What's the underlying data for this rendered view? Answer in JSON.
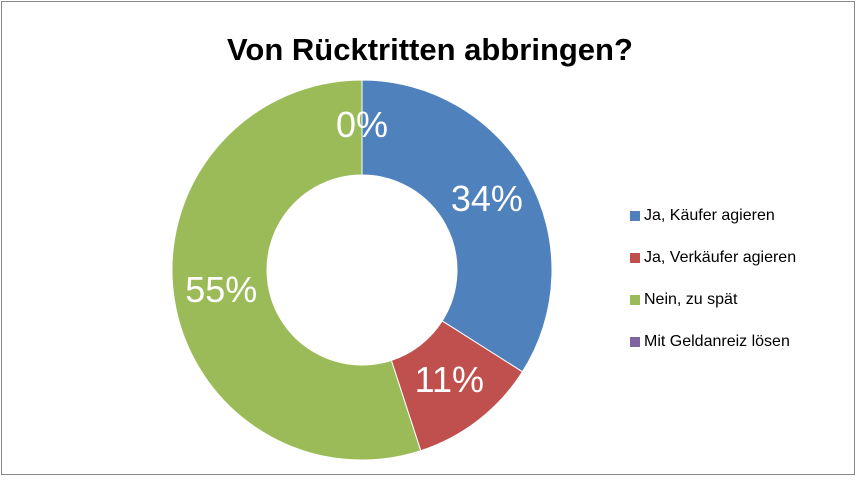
{
  "chart_data": {
    "type": "pie",
    "donut": true,
    "title": "Von Rücktritten abbringen?",
    "categories": [
      "Ja, Käufer agieren",
      "Ja, Verkäufer agieren",
      "Nein, zu spät",
      "Mit Geldanreiz lösen"
    ],
    "values": [
      34,
      11,
      55,
      0
    ],
    "value_labels": [
      "34%",
      "11%",
      "55%",
      "0%"
    ],
    "colors": [
      "#4f81bd",
      "#c0504d",
      "#9bbb59",
      "#8064a2"
    ],
    "legend": "right"
  }
}
